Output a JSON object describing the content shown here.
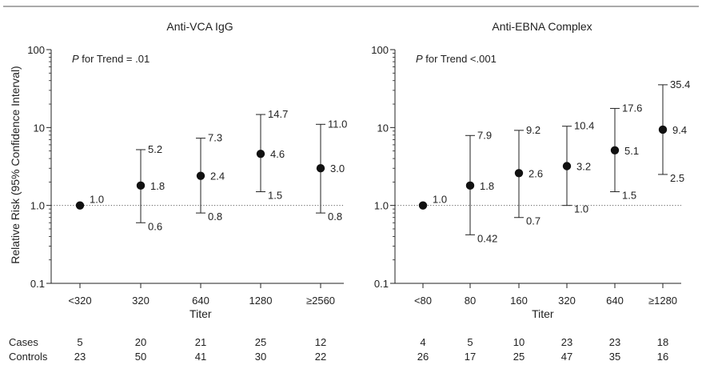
{
  "ylabel": "Relative Risk (95% Confidence Interval)",
  "y_ticks": [
    "0.1",
    "1.0",
    "10",
    "100"
  ],
  "counts": {
    "cases_label": "Cases",
    "controls_label": "Controls"
  },
  "chart_data": [
    {
      "type": "scatter",
      "title": "Anti-VCA IgG",
      "annotation_p": "P",
      "annotation_rest": " for Trend = .01",
      "xlabel": "Titer",
      "ylabel": "Relative Risk (95% Confidence Interval)",
      "y_scale": "log",
      "ylim": [
        0.1,
        100
      ],
      "reference_line": 1.0,
      "categories": [
        "<320",
        "320",
        "640",
        "1280",
        "≥2560"
      ],
      "estimates": [
        1.0,
        1.8,
        2.4,
        4.6,
        3.0
      ],
      "lower": [
        null,
        0.6,
        0.8,
        1.5,
        0.8
      ],
      "upper": [
        null,
        5.2,
        7.3,
        14.7,
        11.0
      ],
      "estimate_labels": [
        "1.0",
        "1.8",
        "2.4",
        "4.6",
        "3.0"
      ],
      "lower_labels": [
        "",
        "0.6",
        "0.8",
        "1.5",
        "0.8"
      ],
      "upper_labels": [
        "",
        "5.2",
        "7.3",
        "14.7",
        "11.0"
      ],
      "cases": [
        "5",
        "20",
        "21",
        "25",
        "12"
      ],
      "controls": [
        "23",
        "50",
        "41",
        "30",
        "22"
      ]
    },
    {
      "type": "scatter",
      "title": "Anti-EBNA Complex",
      "annotation_p": "P",
      "annotation_rest": " for Trend <.001",
      "xlabel": "Titer",
      "ylabel": "",
      "y_scale": "log",
      "ylim": [
        0.1,
        100
      ],
      "reference_line": 1.0,
      "categories": [
        "<80",
        "80",
        "160",
        "320",
        "640",
        "≥1280"
      ],
      "estimates": [
        1.0,
        1.8,
        2.6,
        3.2,
        5.1,
        9.4
      ],
      "lower": [
        null,
        0.42,
        0.7,
        1.0,
        1.5,
        2.5
      ],
      "upper": [
        null,
        7.9,
        9.2,
        10.4,
        17.6,
        35.4
      ],
      "estimate_labels": [
        "1.0",
        "1.8",
        "2.6",
        "3.2",
        "5.1",
        "9.4"
      ],
      "lower_labels": [
        "",
        "0.42",
        "0.7",
        "1.0",
        "1.5",
        "2.5"
      ],
      "upper_labels": [
        "",
        "7.9",
        "9.2",
        "10.4",
        "17.6",
        "35.4"
      ],
      "cases": [
        "4",
        "5",
        "10",
        "23",
        "23",
        "18"
      ],
      "controls": [
        "26",
        "17",
        "25",
        "47",
        "35",
        "16"
      ]
    }
  ]
}
